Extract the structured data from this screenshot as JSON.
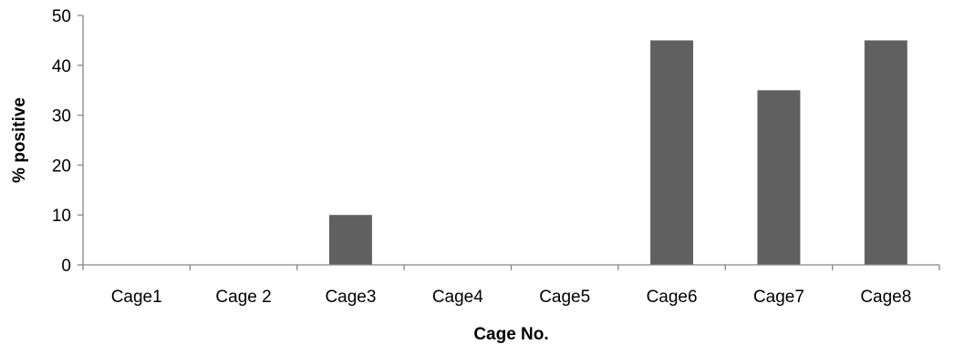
{
  "chart_data": {
    "type": "bar",
    "categories": [
      "Cage1",
      "Cage 2",
      "Cage3",
      "Cage4",
      "Cage5",
      "Cage6",
      "Cage7",
      "Cage8"
    ],
    "values": [
      0,
      0,
      10,
      0,
      0,
      45,
      35,
      45
    ],
    "xlabel": "Cage No.",
    "ylabel": "% positive",
    "ylim": [
      0,
      50
    ],
    "yticks": [
      0,
      10,
      20,
      30,
      40,
      50
    ],
    "bar_color": "#606060",
    "grid": false,
    "legend": "none"
  }
}
